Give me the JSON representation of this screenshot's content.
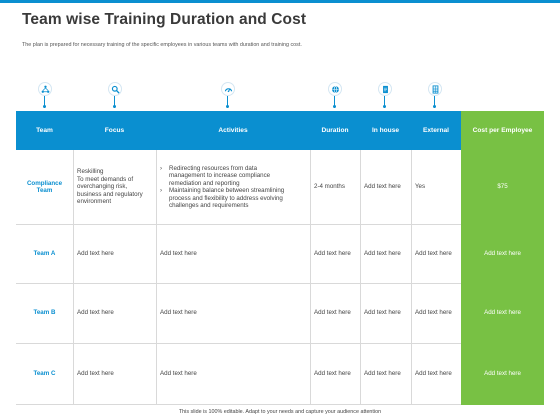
{
  "header": {
    "title": "Team wise Training Duration and Cost",
    "subtitle": "The plan is prepared for necessary training of the specific employees in various teams with duration and training cost."
  },
  "icons": {
    "focus": "network-people-icon",
    "activities_a": "magnifier-icon",
    "activities_b": "speedometer-icon",
    "duration": "globe-icon",
    "in_house": "document-icon",
    "external": "spreadsheet-icon"
  },
  "table": {
    "columns": {
      "team": "Team",
      "focus": "Focus",
      "activities": "Activities",
      "duration": "Duration",
      "in_house": "In house",
      "external": "External",
      "cost": "Cost  per Employee"
    },
    "rows": [
      {
        "team": [
          "Compliance",
          "Team"
        ],
        "focus": [
          "Reskilling",
          "To meet demands of",
          "overchanging risk,",
          "business and regulatory",
          "environment"
        ],
        "activities": [
          {
            "bullet": "›",
            "lines": [
              "Redirecting resources from data",
              "management to increase compliance",
              "remediation and reporting"
            ]
          },
          {
            "bullet": "›",
            "lines": [
              "Maintaining balance between streamlining",
              "process and flexibility to  address evolving",
              "challenges and requirements"
            ]
          }
        ],
        "duration": "2-4 months",
        "in_house": "Add text here",
        "external": "Yes",
        "cost": "$75"
      },
      {
        "team": [
          "Team A"
        ],
        "focus": [
          "Add text here"
        ],
        "activities_text": "Add text here",
        "duration": "Add text here",
        "in_house": "Add text here",
        "external": "Add text here",
        "cost": "Add text here"
      },
      {
        "team": [
          "Team B"
        ],
        "focus": [
          "Add text here"
        ],
        "activities_text": "Add text here",
        "duration": "Add text here",
        "in_house": "Add text here",
        "external": "Add text here",
        "cost": "Add text here"
      },
      {
        "team": [
          "Team C"
        ],
        "focus": [
          "Add text here"
        ],
        "activities_text": "Add text here",
        "duration": "Add text here",
        "in_house": "Add text here",
        "external": "Add text here",
        "cost": "Add text here"
      }
    ]
  },
  "footer": "This slide is 100% editable. Adapt to your needs and capture your audience attention",
  "colors": {
    "accent_blue": "#0a8fd0",
    "accent_green": "#78c144",
    "title": "#3a3a3a"
  }
}
